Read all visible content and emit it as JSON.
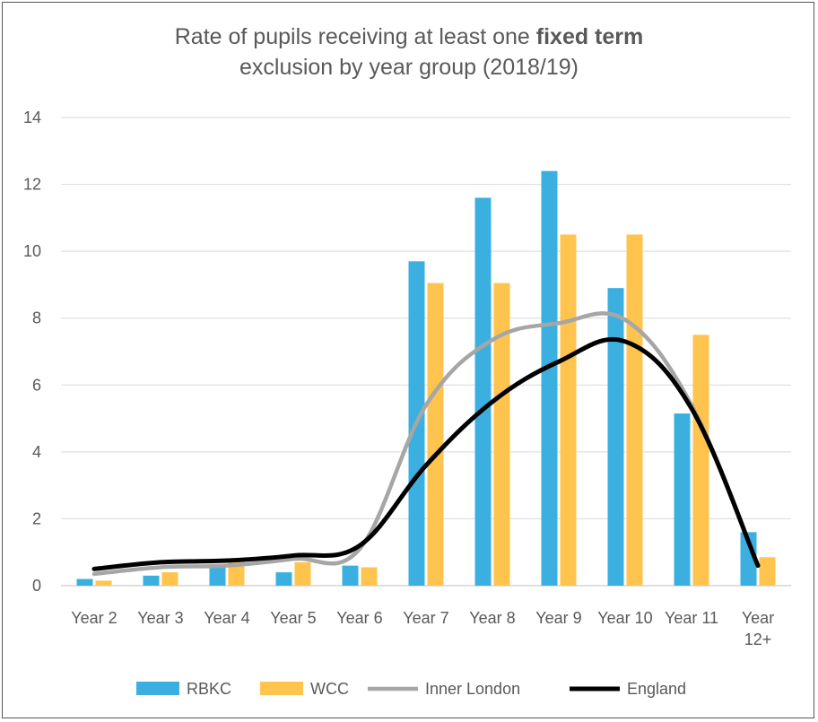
{
  "chart_data": {
    "type": "bar",
    "title_line1_prefix": "Rate of pupils receiving at least one ",
    "title_line1_bold": "fixed term",
    "title_line2": "exclusion by year group (2018/19)",
    "categories": [
      "Year 2",
      "Year 3",
      "Year 4",
      "Year 5",
      "Year 6",
      "Year 7",
      "Year 8",
      "Year 9",
      "Year 10",
      "Year 11",
      "Year 12+"
    ],
    "category_labels": [
      [
        "Year 2"
      ],
      [
        "Year 3"
      ],
      [
        "Year 4"
      ],
      [
        "Year 5"
      ],
      [
        "Year 6"
      ],
      [
        "Year 7"
      ],
      [
        "Year 8"
      ],
      [
        "Year 9"
      ],
      [
        "Year 10"
      ],
      [
        "Year 11"
      ],
      [
        "Year",
        "12+"
      ]
    ],
    "ylim": [
      0,
      14
    ],
    "yticks": [
      0,
      2,
      4,
      6,
      8,
      10,
      12,
      14
    ],
    "grid": true,
    "legend_position": "bottom",
    "series": [
      {
        "name": "RBKC",
        "kind": "bar",
        "color": "#3BB0E0",
        "values": [
          0.2,
          0.3,
          0.55,
          0.4,
          0.6,
          9.7,
          11.6,
          12.4,
          8.9,
          5.15,
          1.6
        ]
      },
      {
        "name": "WCC",
        "kind": "bar",
        "color": "#FFC44D",
        "values": [
          0.15,
          0.4,
          0.75,
          0.7,
          0.55,
          9.05,
          9.05,
          10.5,
          10.5,
          7.5,
          0.85
        ]
      },
      {
        "name": "Inner London",
        "kind": "line",
        "color": "#A6A6A6",
        "values": [
          0.35,
          0.55,
          0.6,
          0.8,
          1.1,
          5.4,
          7.35,
          7.85,
          7.95,
          5.4,
          0.6
        ]
      },
      {
        "name": "England",
        "kind": "line",
        "color": "#000000",
        "values": [
          0.5,
          0.7,
          0.75,
          0.9,
          1.2,
          3.6,
          5.5,
          6.7,
          7.3,
          5.3,
          0.6
        ]
      }
    ]
  }
}
